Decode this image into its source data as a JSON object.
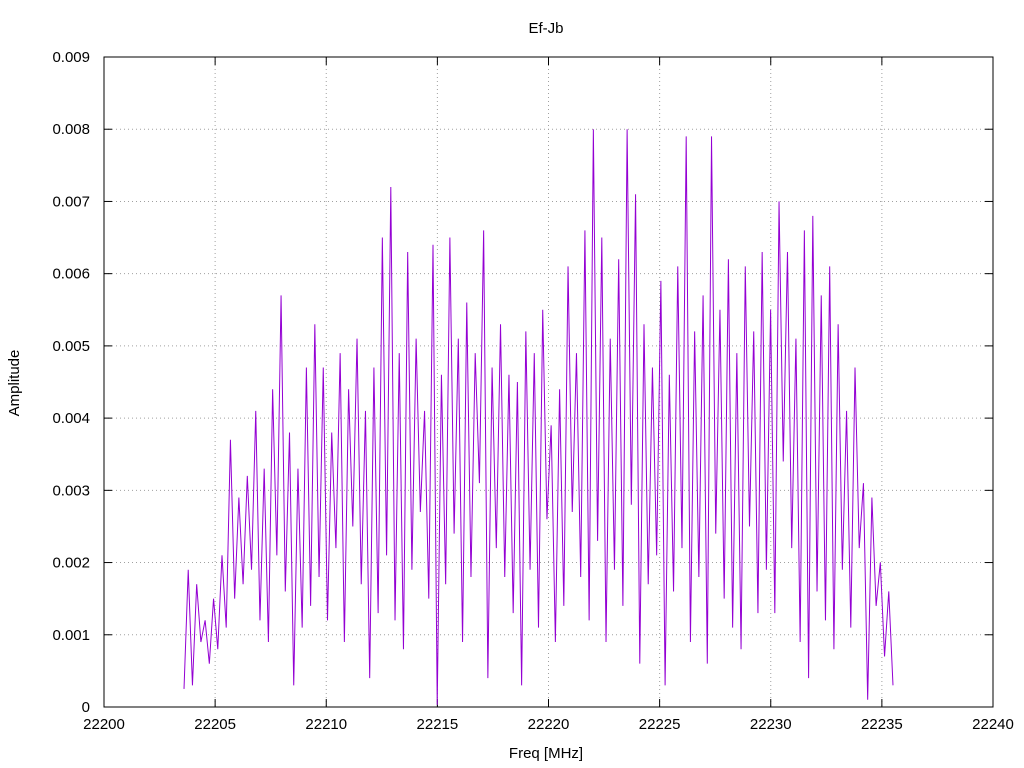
{
  "chart_data": {
    "type": "line",
    "title": "Ef-Jb",
    "xlabel": "Freq [MHz]",
    "ylabel": "Amplitude",
    "xlim": [
      22200,
      22240
    ],
    "ylim": [
      0,
      0.009
    ],
    "x_ticks": [
      "22200",
      "22205",
      "22210",
      "22215",
      "22220",
      "22225",
      "22230",
      "22235",
      "22240"
    ],
    "y_ticks": [
      "0",
      "0.001",
      "0.002",
      "0.003",
      "0.004",
      "0.005",
      "0.006",
      "0.007",
      "0.008",
      "0.009"
    ],
    "grid": true,
    "series": [
      {
        "color": "#9400d3",
        "x_start": 22203.6,
        "x_end": 22235.5,
        "sampled_values": [
          0.00025,
          0.0019,
          0.0003,
          0.0017,
          0.0009,
          0.0012,
          0.0006,
          0.0015,
          0.0008,
          0.0021,
          0.0011,
          0.0037,
          0.0015,
          0.0029,
          0.0017,
          0.0032,
          0.0019,
          0.0041,
          0.0012,
          0.0033,
          0.0009,
          0.0044,
          0.0021,
          0.0057,
          0.0016,
          0.0038,
          0.0003,
          0.0033,
          0.0011,
          0.0047,
          0.0014,
          0.0053,
          0.0018,
          0.0047,
          0.0012,
          0.0038,
          0.0022,
          0.0049,
          0.0009,
          0.0044,
          0.0025,
          0.0051,
          0.0017,
          0.0041,
          0.0004,
          0.0047,
          0.0013,
          0.0065,
          0.0021,
          0.0072,
          0.0012,
          0.0049,
          0.0008,
          0.0063,
          0.0019,
          0.0051,
          0.0027,
          0.0041,
          0.0015,
          0.0064,
          3e-05,
          0.0046,
          0.0017,
          0.0065,
          0.0024,
          0.0051,
          0.0009,
          0.0056,
          0.0018,
          0.0049,
          0.0031,
          0.0066,
          0.0004,
          0.0047,
          0.0022,
          0.0053,
          0.0018,
          0.0046,
          0.0013,
          0.0045,
          0.0003,
          0.0052,
          0.0019,
          0.0049,
          0.0011,
          0.0055,
          0.0026,
          0.0039,
          0.0009,
          0.0044,
          0.0014,
          0.0061,
          0.0027,
          0.0049,
          0.0018,
          0.0066,
          0.0012,
          0.008,
          0.0023,
          0.0065,
          0.0009,
          0.0051,
          0.0019,
          0.0062,
          0.0014,
          0.008,
          0.0028,
          0.0071,
          0.0006,
          0.0053,
          0.0017,
          0.0047,
          0.0021,
          0.0059,
          0.0003,
          0.0046,
          0.0016,
          0.0061,
          0.0022,
          0.0079,
          0.0009,
          0.0052,
          0.0018,
          0.0057,
          0.0006,
          0.0079,
          0.0024,
          0.0055,
          0.0015,
          0.0062,
          0.0011,
          0.0049,
          0.0008,
          0.0061,
          0.0025,
          0.0052,
          0.0013,
          0.0063,
          0.0019,
          0.0055,
          0.0013,
          0.007,
          0.0034,
          0.0063,
          0.0022,
          0.0051,
          0.0009,
          0.0066,
          0.0004,
          0.0068,
          0.0016,
          0.0057,
          0.0012,
          0.0061,
          0.0008,
          0.0053,
          0.0019,
          0.0041,
          0.0011,
          0.0047,
          0.0022,
          0.0031,
          0.0001,
          0.0029,
          0.0014,
          0.002,
          0.0007,
          0.0016,
          0.0003
        ]
      }
    ]
  }
}
